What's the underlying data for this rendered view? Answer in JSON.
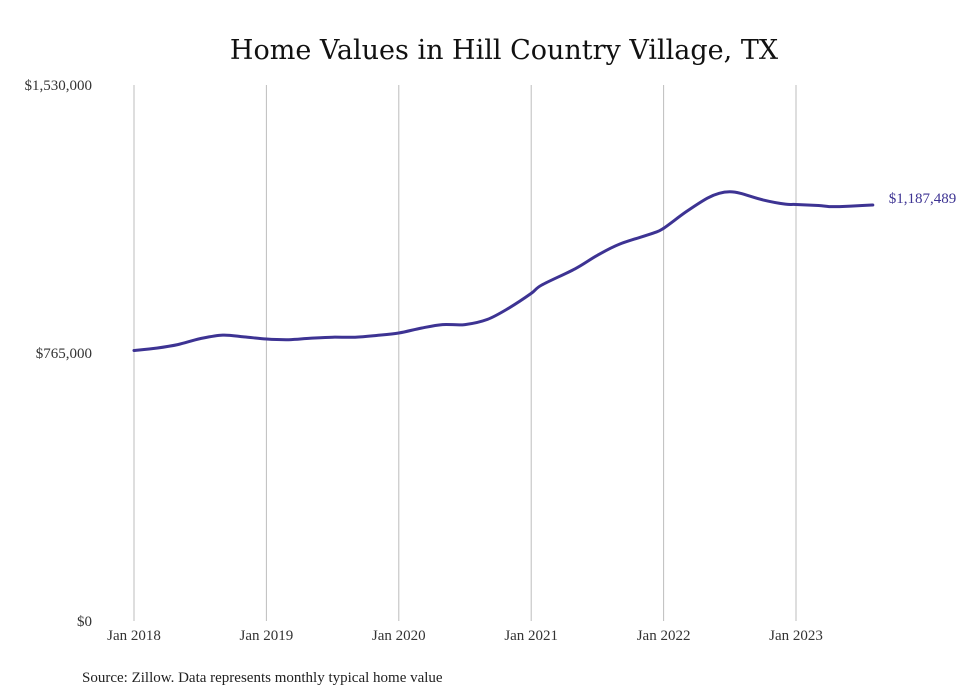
{
  "chart_data": {
    "type": "line",
    "title": "Home Values in Hill Country Village, TX",
    "xlabel": "",
    "ylabel": "",
    "ylim": [
      0,
      1530000
    ],
    "y_ticks": [
      {
        "value": 0,
        "label": "$0"
      },
      {
        "value": 765000,
        "label": "$765,000"
      },
      {
        "value": 1530000,
        "label": "$1,530,000"
      }
    ],
    "x_ticks": [
      {
        "value": 2018.0,
        "label": "Jan 2018"
      },
      {
        "value": 2019.0,
        "label": "Jan 2019"
      },
      {
        "value": 2020.0,
        "label": "Jan 2020"
      },
      {
        "value": 2021.0,
        "label": "Jan 2021"
      },
      {
        "value": 2022.0,
        "label": "Jan 2022"
      },
      {
        "value": 2023.0,
        "label": "Jan 2023"
      }
    ],
    "grid": "vertical",
    "line_color": "#3d3393",
    "end_label": "$1,187,489",
    "series": [
      {
        "x": [
          2018.0,
          2018.17,
          2018.33,
          2018.5,
          2018.67,
          2018.83,
          2019.0,
          2019.17,
          2019.33,
          2019.5,
          2019.67,
          2019.83,
          2020.0,
          2020.17,
          2020.33,
          2020.5,
          2020.67,
          2020.83,
          2021.0,
          2021.08,
          2021.33,
          2021.5,
          2021.67,
          2021.92,
          2022.0,
          2022.17,
          2022.33,
          2022.42,
          2022.5,
          2022.58,
          2022.75,
          2022.92,
          2023.0,
          2023.17,
          2023.25,
          2023.33,
          2023.5,
          2023.58
        ],
        "values": [
          772000,
          779000,
          789000,
          806000,
          816000,
          811000,
          805000,
          803000,
          807000,
          810000,
          810000,
          815000,
          822000,
          836000,
          846000,
          846000,
          861000,
          893000,
          935000,
          959000,
          1005000,
          1044000,
          1076000,
          1107000,
          1121000,
          1168000,
          1207000,
          1221000,
          1225000,
          1221000,
          1202000,
          1190000,
          1189000,
          1186000,
          1183000,
          1183000,
          1186000,
          1187489
        ]
      }
    ]
  },
  "footer": {
    "source": "Source: Zillow. Data represents monthly typical home value"
  }
}
